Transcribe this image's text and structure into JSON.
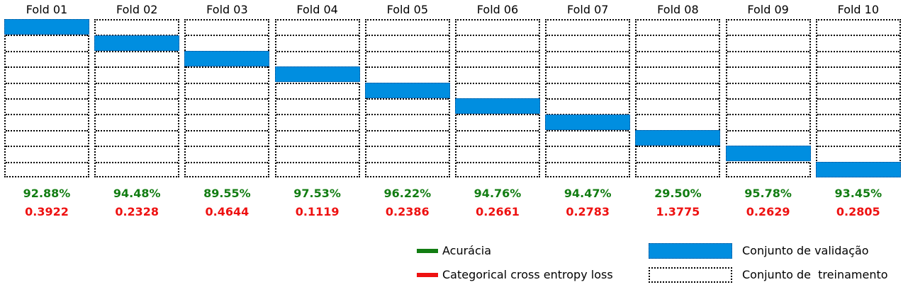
{
  "folds": [
    {
      "title": "Fold 01",
      "accuracy": "92.88%",
      "loss": "0.3922",
      "validation_segment": 1
    },
    {
      "title": "Fold 02",
      "accuracy": "94.48%",
      "loss": "0.2328",
      "validation_segment": 2
    },
    {
      "title": "Fold 03",
      "accuracy": "89.55%",
      "loss": "0.4644",
      "validation_segment": 3
    },
    {
      "title": "Fold 04",
      "accuracy": "97.53%",
      "loss": "0.1119",
      "validation_segment": 4
    },
    {
      "title": "Fold 05",
      "accuracy": "96.22%",
      "loss": "0.2386",
      "validation_segment": 5
    },
    {
      "title": "Fold 06",
      "accuracy": "94.76%",
      "loss": "0.2661",
      "validation_segment": 6
    },
    {
      "title": "Fold 07",
      "accuracy": "94.47%",
      "loss": "0.2783",
      "validation_segment": 7
    },
    {
      "title": "Fold 08",
      "accuracy": "29.50%",
      "loss": "1.3775",
      "validation_segment": 8
    },
    {
      "title": "Fold 09",
      "accuracy": "95.78%",
      "loss": "0.2629",
      "validation_segment": 9
    },
    {
      "title": "Fold 10",
      "accuracy": "93.45%",
      "loss": "0.2805",
      "validation_segment": 10
    }
  ],
  "segments_per_fold": 10,
  "legend": {
    "accuracy_label": "Acurácia",
    "loss_label": "Categorical cross entropy loss",
    "validation_label": "Conjunto de validação",
    "training_label": "Conjunto de  treinamento"
  },
  "colors": {
    "accuracy": "#127d12",
    "loss": "#ee1111",
    "validation": "#008ee0"
  }
}
